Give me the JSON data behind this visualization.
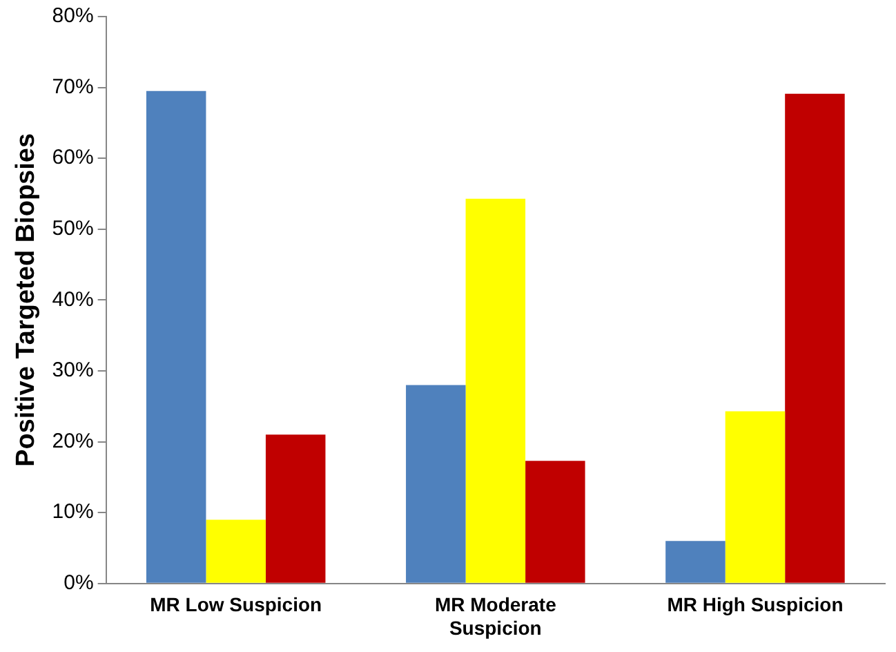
{
  "chart_data": {
    "type": "bar",
    "ylabel": "Positive Targeted Biopsies",
    "categories": [
      "MR Low Suspicion",
      "MR Moderate Suspicion",
      "MR High Suspicion"
    ],
    "series": [
      {
        "color": "#4f81bd",
        "values": [
          69.5,
          28,
          6
        ]
      },
      {
        "color": "#ffff00",
        "values": [
          9,
          54.3,
          24.3
        ]
      },
      {
        "color": "#c00000",
        "values": [
          21,
          17.3,
          69.1
        ]
      }
    ],
    "ylim": [
      0,
      80
    ],
    "yticks": [
      {
        "value": 0,
        "label": "0%"
      },
      {
        "value": 10,
        "label": "10%"
      },
      {
        "value": 20,
        "label": "20%"
      },
      {
        "value": 30,
        "label": "30%"
      },
      {
        "value": 40,
        "label": "40%"
      },
      {
        "value": 50,
        "label": "50%"
      },
      {
        "value": 60,
        "label": "60%"
      },
      {
        "value": 70,
        "label": "70%"
      },
      {
        "value": 80,
        "label": "80%"
      }
    ],
    "grid": false,
    "legend": false
  }
}
